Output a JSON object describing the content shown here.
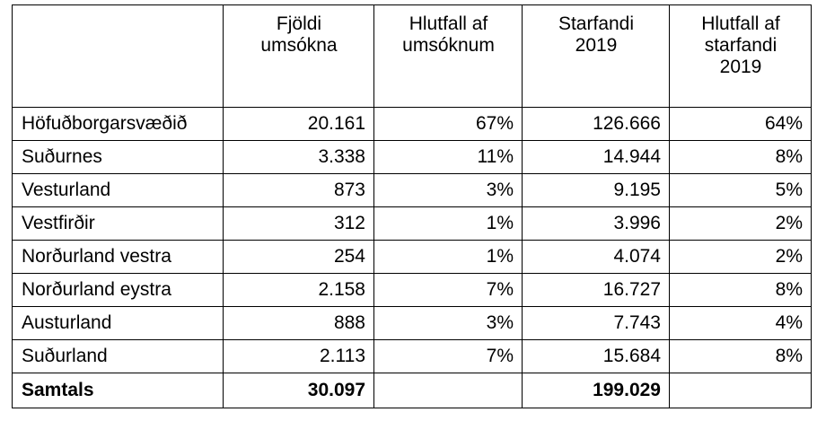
{
  "table": {
    "headers": [
      [],
      [
        "Fjöldi",
        "umsókna"
      ],
      [
        "Hlutfall af",
        "umsóknum"
      ],
      [
        "Starfandi",
        "2019"
      ],
      [
        "Hlutfall af",
        "starfandi",
        "2019"
      ]
    ],
    "rows": [
      [
        "Höfuðborgarsvæðið",
        "20.161",
        "67%",
        "126.666",
        "64%"
      ],
      [
        "Suðurnes",
        "3.338",
        "11%",
        "14.944",
        "8%"
      ],
      [
        "Vesturland",
        "873",
        "3%",
        "9.195",
        "5%"
      ],
      [
        "Vestfirðir",
        "312",
        "1%",
        "3.996",
        "2%"
      ],
      [
        "Norðurland vestra",
        "254",
        "1%",
        "4.074",
        "2%"
      ],
      [
        "Norðurland eystra",
        "2.158",
        "7%",
        "16.727",
        "8%"
      ],
      [
        "Austurland",
        "888",
        "3%",
        "7.743",
        "4%"
      ],
      [
        "Suðurland",
        "2.113",
        "7%",
        "15.684",
        "8%"
      ]
    ],
    "total": [
      "Samtals",
      "30.097",
      "",
      "199.029",
      ""
    ]
  }
}
